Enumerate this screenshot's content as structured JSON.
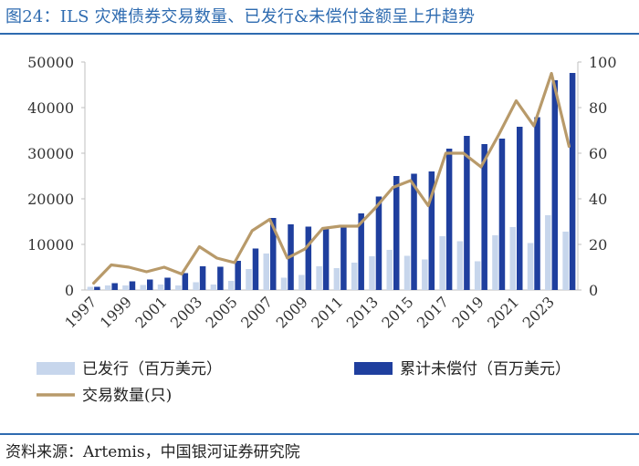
{
  "header": {
    "title": "图24：ILS 灾难债券交易数量、已发行&未偿付金额呈上升趋势"
  },
  "footer": {
    "source": "资料来源：Artemis，中国银河证券研究院"
  },
  "colors": {
    "issued": "#c7d6ec",
    "outstanding": "#1f3f9e",
    "trades": "#b89a6a",
    "title": "#2e6bb0"
  },
  "chart_data": {
    "type": "bar",
    "years": [
      1997,
      1998,
      1999,
      2000,
      2001,
      2002,
      2003,
      2004,
      2005,
      2006,
      2007,
      2008,
      2009,
      2010,
      2011,
      2012,
      2013,
      2014,
      2015,
      2016,
      2017,
      2018,
      2019,
      2020,
      2021,
      2022,
      2023,
      2024
    ],
    "x_tick_labels": [
      "1997",
      "1999",
      "2001",
      "2003",
      "2005",
      "2007",
      "2009",
      "2011",
      "2013",
      "2015",
      "2017",
      "2019",
      "2021",
      "2023"
    ],
    "series": [
      {
        "name": "已发行（百万美元）",
        "type": "bar",
        "axis": "left",
        "values": [
          700,
          1000,
          1000,
          1100,
          1200,
          1000,
          1700,
          1200,
          2000,
          4600,
          8000,
          2700,
          3300,
          5200,
          4800,
          6000,
          7400,
          8800,
          7500,
          6700,
          11800,
          10700,
          6300,
          12000,
          13800,
          10300,
          16400,
          12800
        ]
      },
      {
        "name": "累计未偿付（百万美元）",
        "type": "bar",
        "axis": "left",
        "values": [
          700,
          1500,
          1900,
          2300,
          2700,
          3700,
          5200,
          5100,
          6400,
          9100,
          15800,
          14400,
          13900,
          13800,
          13900,
          16800,
          20500,
          25000,
          25500,
          26000,
          31000,
          33800,
          32000,
          33200,
          35800,
          37900,
          46000,
          47600
        ]
      },
      {
        "name": "交易数量(只)",
        "type": "line",
        "axis": "right",
        "values": [
          3,
          11,
          10,
          8,
          10,
          7,
          19,
          14,
          12,
          26,
          31,
          14,
          18,
          27,
          28,
          28,
          36,
          45,
          48,
          37,
          60,
          60,
          54,
          68,
          83,
          72,
          95,
          63
        ]
      }
    ],
    "left_axis": {
      "ylim": [
        0,
        50000
      ],
      "ticks": [
        "0",
        "10000",
        "20000",
        "30000",
        "40000",
        "50000"
      ]
    },
    "right_axis": {
      "ylim": [
        0,
        100
      ],
      "ticks": [
        "0",
        "20",
        "40",
        "60",
        "80",
        "100"
      ]
    }
  }
}
